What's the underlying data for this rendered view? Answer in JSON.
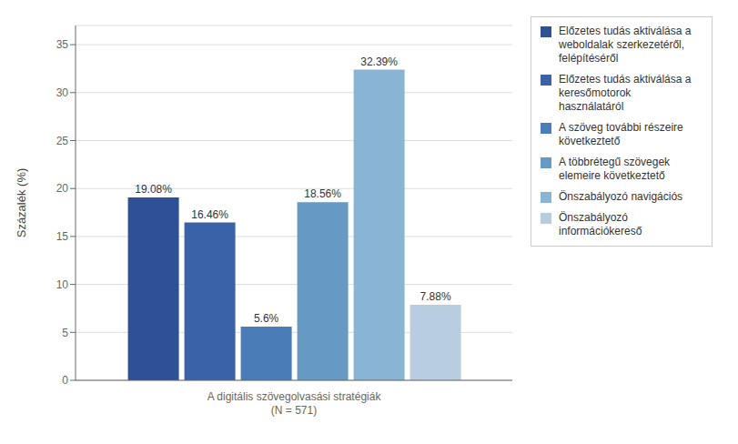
{
  "chart_data": {
    "type": "bar",
    "categories": [
      "A digitális szövegolvasási stratégiák\n(N = 571)"
    ],
    "ylabel": "Százalék (%)",
    "ylim": [
      0,
      37
    ],
    "yticks": [
      0,
      5,
      10,
      15,
      20,
      25,
      30,
      35
    ],
    "grid": true,
    "legend": "right",
    "data_labels": true,
    "series": [
      {
        "name": "Előzetes tudás aktiválása a\nweboldalak szerkezetéről,\nfelépítéséről",
        "color": "#2E5096",
        "values": [
          19.08
        ],
        "value_labels": [
          "19.08%"
        ]
      },
      {
        "name": "Előzetes tudás aktiválása a\nkeresőmotorok\nhasználatáról",
        "color": "#3A62A8",
        "values": [
          16.46
        ],
        "value_labels": [
          "16.46%"
        ]
      },
      {
        "name": "A szöveg további részeire\nkövetkeztető",
        "color": "#4A7DB8",
        "values": [
          5.6
        ],
        "value_labels": [
          "5.6%"
        ]
      },
      {
        "name": "A többrétegű szövegek\nelemeire következtető",
        "color": "#6699C4",
        "values": [
          18.56
        ],
        "value_labels": [
          "18.56%"
        ]
      },
      {
        "name": "Önszabályozó navigációs",
        "color": "#8AB4D4",
        "values": [
          32.39
        ],
        "value_labels": [
          "32.39%"
        ]
      },
      {
        "name": "Önszabályozó\ninformációkereső",
        "color": "#B8CDE0",
        "values": [
          7.88
        ],
        "value_labels": [
          "7.88%"
        ]
      }
    ]
  }
}
